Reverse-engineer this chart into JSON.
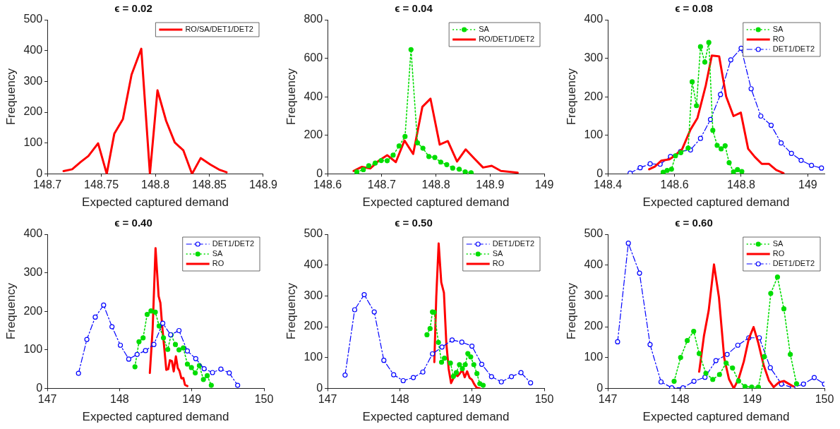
{
  "chart_data": [
    {
      "type": "line",
      "title": "ϵ = 0.02",
      "xlabel": "Expected captured demand",
      "ylabel": "Frequency",
      "xlim": [
        148.7,
        148.9
      ],
      "xticks": [
        148.7,
        148.75,
        148.8,
        148.85,
        148.9
      ],
      "ylim": [
        0,
        500
      ],
      "yticks": [
        0,
        100,
        200,
        300,
        400,
        500
      ],
      "grid": false,
      "legend": "top right",
      "series": [
        {
          "name": "RO/SA/DET1/DET2",
          "color": "#ff0000",
          "line_style": "solid",
          "marker": "none",
          "x": [
            148.715,
            148.723,
            148.731,
            148.738,
            148.747,
            148.755,
            148.762,
            148.77,
            148.778,
            148.787,
            148.795,
            148.802,
            148.81,
            148.818,
            148.826,
            148.834,
            148.842,
            148.851,
            148.859,
            148.866
          ],
          "values": [
            9,
            15,
            39,
            58,
            99,
            0,
            130,
            178,
            322,
            406,
            0,
            271,
            172,
            102,
            76,
            0,
            51,
            30,
            14,
            5
          ]
        }
      ]
    },
    {
      "type": "line",
      "title": "ϵ = 0.04",
      "xlabel": "Expected captured demand",
      "ylabel": "Frequency",
      "xlim": [
        148.6,
        149
      ],
      "xticks": [
        148.6,
        148.7,
        148.8,
        148.9,
        149
      ],
      "ylim": [
        0,
        800
      ],
      "yticks": [
        0,
        200,
        400,
        600,
        800
      ],
      "grid": false,
      "legend": "top right",
      "series": [
        {
          "name": "SA",
          "color": "#00dd00",
          "line_style": "dotted",
          "marker": "circle",
          "x": [
            148.654,
            148.666,
            148.676,
            148.688,
            148.699,
            148.71,
            148.721,
            148.732,
            148.743,
            148.754,
            148.766,
            148.776,
            148.787,
            148.798,
            148.809,
            148.82,
            148.831,
            148.843,
            148.854,
            148.865
          ],
          "values": [
            10,
            22,
            42,
            56,
            69,
            68,
            97,
            145,
            194,
            645,
            161,
            133,
            90,
            85,
            61,
            48,
            30,
            24,
            10,
            6
          ]
        },
        {
          "name": "RO/DET1/DET2",
          "color": "#ff0000",
          "line_style": "solid",
          "marker": "none",
          "x": [
            148.648,
            148.663,
            148.679,
            148.694,
            148.71,
            148.726,
            148.742,
            148.758,
            148.775,
            148.79,
            148.807,
            148.822,
            148.839,
            148.855,
            148.871,
            148.887,
            148.903,
            148.92,
            148.951
          ],
          "values": [
            15,
            36,
            28,
            67,
            97,
            61,
            173,
            103,
            348,
            390,
            152,
            170,
            64,
            127,
            79,
            33,
            42,
            15,
            6
          ]
        }
      ]
    },
    {
      "type": "line",
      "title": "ϵ = 0.08",
      "xlabel": "Expected captured demand",
      "ylabel": "Frequency",
      "xlim": [
        148.4,
        149.05
      ],
      "xticks": [
        148.4,
        148.6,
        148.8,
        149
      ],
      "ylim": [
        0,
        400
      ],
      "yticks": [
        0,
        100,
        200,
        300,
        400
      ],
      "grid": false,
      "legend": "top right",
      "series": [
        {
          "name": "SA",
          "color": "#00dd00",
          "line_style": "dotted",
          "marker": "circle",
          "x": [
            148.566,
            148.578,
            148.591,
            148.603,
            148.619,
            148.641,
            148.653,
            148.666,
            148.678,
            148.691,
            148.703,
            148.715,
            148.728,
            148.74,
            148.752,
            148.764,
            148.777,
            148.789,
            148.802
          ],
          "values": [
            4,
            9,
            12,
            47,
            55,
            67,
            239,
            177,
            330,
            290,
            341,
            113,
            74,
            65,
            73,
            29,
            5,
            11,
            6
          ]
        },
        {
          "name": "RO",
          "color": "#ff0000",
          "line_style": "solid",
          "marker": "none",
          "x": [
            148.524,
            148.541,
            148.56,
            148.585,
            148.602,
            148.623,
            148.648,
            148.669,
            148.694,
            148.712,
            148.734,
            148.755,
            148.777,
            148.799,
            148.821,
            148.841,
            148.862,
            148.883,
            148.905,
            148.927
          ],
          "values": [
            12,
            19,
            34,
            38,
            48,
            64,
            115,
            145,
            230,
            307,
            305,
            201,
            150,
            159,
            65,
            44,
            26,
            26,
            10,
            2
          ]
        },
        {
          "name": "DET1/DET2",
          "color": "#0000ff",
          "line_style": "dashed",
          "marker": "circle",
          "x": [
            148.467,
            148.497,
            148.527,
            148.557,
            148.588,
            148.618,
            148.648,
            148.678,
            148.708,
            148.738,
            148.769,
            148.8,
            148.83,
            148.859,
            148.89,
            148.92,
            148.951,
            148.98,
            149.011,
            149.041
          ],
          "values": [
            2,
            16,
            26,
            25,
            45,
            58,
            62,
            92,
            141,
            206,
            296,
            326,
            221,
            150,
            126,
            80,
            53,
            35,
            22,
            15
          ]
        }
      ]
    },
    {
      "type": "line",
      "title": "ϵ = 0.40",
      "xlabel": "Expected captured demand",
      "ylabel": "Frequency",
      "xlim": [
        147,
        150
      ],
      "xticks": [
        147,
        148,
        149,
        150
      ],
      "ylim": [
        0,
        400
      ],
      "yticks": [
        0,
        100,
        200,
        300,
        400
      ],
      "grid": false,
      "legend": "top right",
      "series": [
        {
          "name": "DET1/DET2",
          "color": "#0000ff",
          "line_style": "dashed",
          "marker": "circle",
          "x": [
            147.431,
            147.547,
            147.663,
            147.779,
            147.895,
            148.011,
            148.127,
            148.243,
            148.359,
            148.475,
            148.598,
            148.707,
            148.823,
            148.939,
            149.055,
            149.171,
            149.287,
            149.403,
            149.519,
            149.635
          ],
          "values": [
            39,
            127,
            185,
            216,
            160,
            112,
            76,
            88,
            98,
            114,
            169,
            139,
            150,
            97,
            77,
            51,
            41,
            50,
            40,
            8
          ]
        },
        {
          "name": "SA",
          "color": "#00dd00",
          "line_style": "dotted",
          "marker": "circle",
          "x": [
            148.213,
            148.269,
            148.326,
            148.382,
            148.435,
            148.495,
            148.548,
            148.608,
            148.667,
            148.714,
            148.773,
            148.823,
            148.883,
            148.939,
            148.995,
            149.048,
            149.105,
            149.161,
            149.214,
            149.27
          ],
          "values": [
            56,
            121,
            131,
            192,
            201,
            198,
            162,
            131,
            101,
            139,
            114,
            100,
            105,
            63,
            54,
            40,
            59,
            23,
            33,
            8
          ]
        },
        {
          "name": "RO",
          "color": "#ff0000",
          "line_style": "solid",
          "marker": "none",
          "x": [
            148.419,
            148.458,
            148.498,
            148.541,
            148.565,
            148.591,
            148.624,
            148.647,
            148.674,
            148.697,
            148.724,
            148.75,
            148.78,
            148.806,
            148.83,
            148.856,
            148.883,
            148.906,
            148.939
          ],
          "values": [
            40,
            154,
            364,
            239,
            222,
            160,
            95,
            48,
            50,
            73,
            71,
            44,
            83,
            53,
            45,
            26,
            27,
            9,
            6
          ]
        }
      ]
    },
    {
      "type": "line",
      "title": "ϵ = 0.50",
      "xlabel": "Expected captured demand",
      "ylabel": "Frequency",
      "xlim": [
        147,
        150
      ],
      "xticks": [
        147,
        148,
        149,
        150
      ],
      "ylim": [
        0,
        500
      ],
      "yticks": [
        0,
        100,
        200,
        300,
        400,
        500
      ],
      "grid": false,
      "legend": "top right",
      "series": [
        {
          "name": "DET1/DET2",
          "color": "#0000ff",
          "line_style": "dashed",
          "marker": "circle",
          "x": [
            147.242,
            147.375,
            147.507,
            147.646,
            147.779,
            147.915,
            148.047,
            148.187,
            148.319,
            148.452,
            148.584,
            148.724,
            148.859,
            148.999,
            149.135,
            149.27,
            149.406,
            149.546,
            149.678,
            149.811
          ],
          "values": [
            43,
            255,
            304,
            248,
            91,
            44,
            25,
            35,
            53,
            112,
            134,
            157,
            150,
            137,
            78,
            38,
            21,
            38,
            51,
            18
          ]
        },
        {
          "name": "SA",
          "color": "#00dd00",
          "line_style": "dotted",
          "marker": "circle",
          "x": [
            148.376,
            148.419,
            148.452,
            148.475,
            148.535,
            148.578,
            148.618,
            148.701,
            148.743,
            148.783,
            148.826,
            148.866,
            148.906,
            148.942,
            148.982,
            149.025,
            149.068,
            149.108,
            149.154
          ],
          "values": [
            174,
            194,
            248,
            247,
            149,
            85,
            98,
            82,
            39,
            51,
            77,
            64,
            77,
            113,
            102,
            77,
            48,
            15,
            10
          ]
        },
        {
          "name": "RO",
          "color": "#ff0000",
          "line_style": "solid",
          "marker": "none",
          "x": [
            148.478,
            148.505,
            148.538,
            148.574,
            148.611,
            148.644,
            148.677,
            148.71,
            148.767,
            148.8,
            148.833,
            148.866,
            148.899,
            148.932,
            148.966,
            148.999,
            149.032,
            149.065,
            149.108
          ],
          "values": [
            85,
            298,
            470,
            344,
            310,
            147,
            63,
            17,
            45,
            40,
            49,
            60,
            36,
            55,
            34,
            28,
            13,
            2,
            0
          ]
        }
      ]
    },
    {
      "type": "line",
      "title": "ϵ = 0.60",
      "xlabel": "Expected captured demand",
      "ylabel": "Frequency",
      "xlim": [
        147,
        150
      ],
      "xticks": [
        147,
        148,
        149,
        150
      ],
      "ylim": [
        0,
        500
      ],
      "yticks": [
        0,
        100,
        200,
        300,
        400,
        500
      ],
      "grid": false,
      "legend": "top right",
      "series": [
        {
          "name": "SA",
          "color": "#00dd00",
          "line_style": "dotted",
          "marker": "circle",
          "x": [
            147.918,
            148.008,
            148.1,
            148.189,
            148.265,
            148.358,
            148.453,
            148.546,
            148.638,
            148.727,
            148.81,
            148.9,
            148.992,
            149.085,
            149.167,
            149.256,
            149.349,
            149.438,
            149.527,
            149.613
          ],
          "values": [
            23,
            100,
            155,
            185,
            113,
            49,
            29,
            45,
            82,
            66,
            24,
            6,
            4,
            4,
            103,
            308,
            361,
            258,
            110,
            15
          ]
        },
        {
          "name": "RO",
          "color": "#ff0000",
          "line_style": "solid",
          "marker": "none",
          "x": [
            148.265,
            148.331,
            148.397,
            148.47,
            148.539,
            148.612,
            148.678,
            148.744,
            148.81,
            148.883,
            148.952,
            149.018,
            149.084,
            149.157,
            149.23,
            149.296,
            149.372,
            149.438,
            149.504,
            149.57
          ],
          "values": [
            54,
            170,
            253,
            402,
            295,
            98,
            30,
            0,
            30,
            87,
            161,
            199,
            147,
            76,
            26,
            4,
            20,
            24,
            15,
            6
          ]
        },
        {
          "name": "DET1/DET2",
          "color": "#0000ff",
          "line_style": "dashed",
          "marker": "circle",
          "x": [
            147.135,
            147.284,
            147.439,
            147.585,
            147.737,
            147.885,
            148.041,
            148.193,
            148.345,
            148.497,
            148.652,
            148.8,
            148.952,
            149.098,
            149.25,
            149.405,
            149.56,
            149.709,
            149.858,
            150.0
          ],
          "values": [
            151,
            471,
            374,
            142,
            21,
            2,
            2,
            23,
            36,
            90,
            110,
            140,
            164,
            164,
            67,
            14,
            2,
            14,
            35,
            14
          ]
        }
      ]
    }
  ]
}
